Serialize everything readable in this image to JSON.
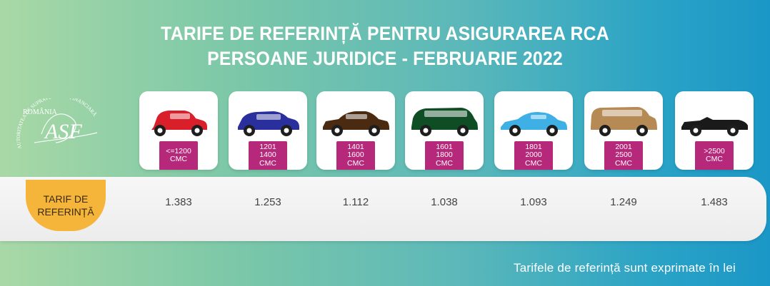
{
  "header": {
    "title_line1": "TARIFE DE REFERINȚĂ PENTRU ASIGURAREA RCA",
    "title_line2": "PERSOANE JURIDICE - FEBRUARIE 2022"
  },
  "logo": {
    "top_text": "ROMÂNIA",
    "monogram": "ASF",
    "arc_text": "AUTORITATEA DE SUPRAVEGHERE FINANCIARĂ"
  },
  "label": {
    "line1": "TARIF DE",
    "line2": "REFERINȚĂ"
  },
  "categories": [
    {
      "line1": "<=1200",
      "line2": "CMC",
      "line3": "",
      "value": "1.383",
      "color": "#d9202a",
      "icon": "small-hatchback-icon"
    },
    {
      "line1": "1201",
      "line2": "1400",
      "line3": "CMC",
      "value": "1.253",
      "color": "#2a2f9e",
      "icon": "hatchback-icon"
    },
    {
      "line1": "1401",
      "line2": "1600",
      "line3": "CMC",
      "value": "1.112",
      "color": "#4a2b12",
      "icon": "sedan-icon"
    },
    {
      "line1": "1601",
      "line2": "1800",
      "line3": "CMC",
      "value": "1.038",
      "color": "#0f4d25",
      "icon": "minivan-icon"
    },
    {
      "line1": "1801",
      "line2": "2000",
      "line3": "CMC",
      "value": "1.093",
      "color": "#3fb0e6",
      "icon": "coupe-icon"
    },
    {
      "line1": "2001",
      "line2": "2500",
      "line3": "CMC",
      "value": "1.249",
      "color": "#b58a55",
      "icon": "suv-icon"
    },
    {
      "line1": ">2500",
      "line2": "CMC",
      "line3": "",
      "value": "1.483",
      "color": "#1a1a1a",
      "icon": "convertible-icon"
    }
  ],
  "footer": {
    "note": "Tarifele de referință sunt exprimate în lei"
  }
}
